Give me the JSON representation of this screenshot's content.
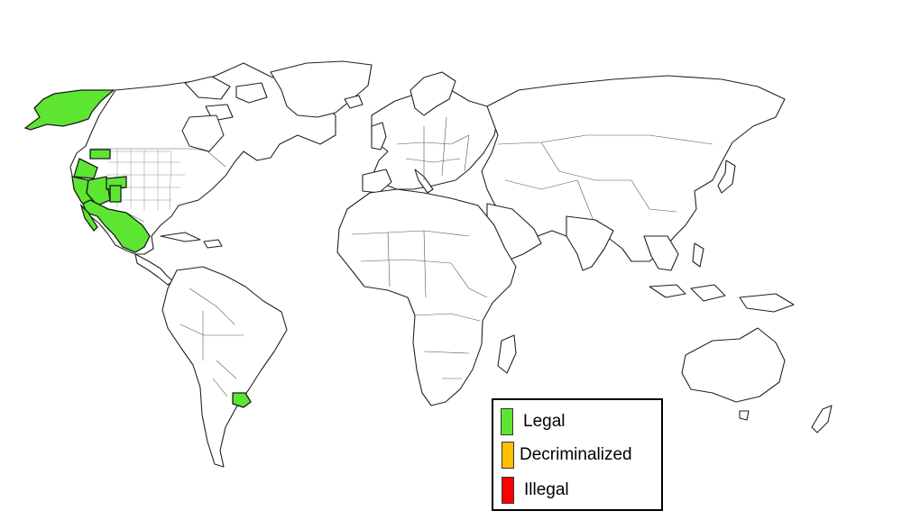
{
  "map": {
    "subject": "world map",
    "colors": {
      "legal": "#5ce632",
      "decriminalized": "#ffc000",
      "illegal": "#ff0000",
      "land": "#ffffff",
      "border": "#222222"
    },
    "legend": {
      "items": [
        {
          "label": "Legal",
          "color": "#5ce632"
        },
        {
          "label": "Decriminalized",
          "color": "#ffc000"
        },
        {
          "label": "Illegal",
          "color": "#ff0000"
        }
      ]
    },
    "highlighted_regions": [
      {
        "region": "Alaska",
        "status": "legal"
      },
      {
        "region": "Washington",
        "status": "legal"
      },
      {
        "region": "Oregon",
        "status": "legal"
      },
      {
        "region": "California",
        "status": "legal"
      },
      {
        "region": "Nevada",
        "status": "legal"
      },
      {
        "region": "Colorado",
        "status": "legal"
      },
      {
        "region": "Mexico",
        "status": "legal"
      },
      {
        "region": "Uruguay",
        "status": "legal"
      }
    ]
  }
}
